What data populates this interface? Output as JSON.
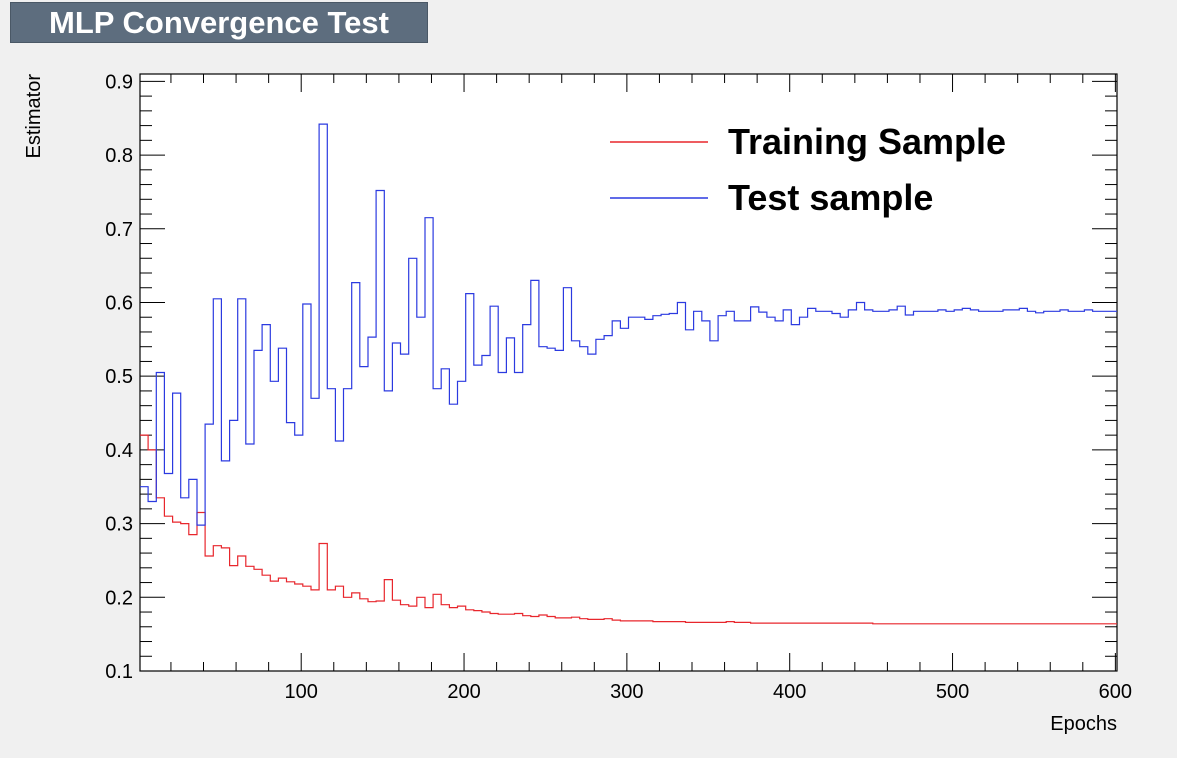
{
  "title": "MLP Convergence Test",
  "chart_data": {
    "type": "line",
    "xlabel": "Epochs",
    "ylabel": "Estimator",
    "xlim": [
      1,
      601
    ],
    "ylim": [
      0.1,
      0.91
    ],
    "x_ticks": [
      100,
      200,
      300,
      400,
      500,
      600
    ],
    "y_ticks": [
      0.1,
      0.2,
      0.3,
      0.4,
      0.5,
      0.6,
      0.7,
      0.8,
      0.9
    ],
    "y_tick_labels": [
      "0.1",
      "0.2",
      "0.3",
      "0.4",
      "0.5",
      "0.6",
      "0.7",
      "0.8",
      "0.9"
    ],
    "grid": false,
    "legend_position": "top-right",
    "series": [
      {
        "name": "Training Sample",
        "color": "#e8262c",
        "step": true,
        "x": [
          1,
          6,
          11,
          16,
          21,
          26,
          31,
          36,
          41,
          46,
          51,
          56,
          61,
          66,
          71,
          76,
          81,
          86,
          91,
          96,
          101,
          106,
          111,
          116,
          121,
          126,
          131,
          136,
          141,
          146,
          151,
          156,
          161,
          166,
          171,
          176,
          181,
          186,
          191,
          196,
          201,
          206,
          211,
          216,
          221,
          226,
          231,
          236,
          241,
          246,
          251,
          256,
          261,
          266,
          271,
          276,
          281,
          286,
          291,
          296,
          301,
          306,
          311,
          316,
          321,
          326,
          331,
          336,
          341,
          346,
          351,
          356,
          361,
          366,
          371,
          376,
          381,
          386,
          391,
          396,
          401,
          406,
          411,
          416,
          421,
          426,
          431,
          436,
          441,
          446,
          451,
          456,
          461,
          466,
          471,
          476,
          481,
          486,
          491,
          496,
          501,
          506,
          511,
          516,
          521,
          526,
          531,
          536,
          541,
          546,
          551,
          556,
          561,
          566,
          571,
          576,
          581,
          586,
          591,
          596
        ],
        "values": [
          0.42,
          0.4,
          0.335,
          0.31,
          0.302,
          0.3,
          0.285,
          0.315,
          0.256,
          0.27,
          0.267,
          0.243,
          0.256,
          0.242,
          0.238,
          0.23,
          0.222,
          0.226,
          0.221,
          0.218,
          0.215,
          0.21,
          0.273,
          0.21,
          0.215,
          0.2,
          0.206,
          0.198,
          0.194,
          0.195,
          0.224,
          0.196,
          0.19,
          0.188,
          0.2,
          0.186,
          0.204,
          0.19,
          0.186,
          0.188,
          0.183,
          0.182,
          0.18,
          0.178,
          0.177,
          0.177,
          0.178,
          0.175,
          0.174,
          0.176,
          0.174,
          0.172,
          0.172,
          0.173,
          0.171,
          0.17,
          0.17,
          0.171,
          0.169,
          0.168,
          0.168,
          0.168,
          0.168,
          0.167,
          0.167,
          0.167,
          0.167,
          0.166,
          0.166,
          0.166,
          0.166,
          0.166,
          0.167,
          0.166,
          0.166,
          0.165,
          0.165,
          0.165,
          0.165,
          0.165,
          0.165,
          0.165,
          0.165,
          0.165,
          0.165,
          0.165,
          0.165,
          0.165,
          0.165,
          0.165,
          0.164,
          0.164,
          0.164,
          0.164,
          0.164,
          0.164,
          0.164,
          0.164,
          0.164,
          0.164,
          0.164,
          0.164,
          0.164,
          0.164,
          0.164,
          0.164,
          0.164,
          0.164,
          0.164,
          0.164,
          0.164,
          0.164,
          0.164,
          0.164,
          0.164,
          0.164,
          0.164,
          0.164,
          0.164,
          0.164
        ]
      },
      {
        "name": "Test sample",
        "color": "#2b3ae0",
        "step": true,
        "x": [
          1,
          6,
          11,
          16,
          21,
          26,
          31,
          36,
          41,
          46,
          51,
          56,
          61,
          66,
          71,
          76,
          81,
          86,
          91,
          96,
          101,
          106,
          111,
          116,
          121,
          126,
          131,
          136,
          141,
          146,
          151,
          156,
          161,
          166,
          171,
          176,
          181,
          186,
          191,
          196,
          201,
          206,
          211,
          216,
          221,
          226,
          231,
          236,
          241,
          246,
          251,
          256,
          261,
          266,
          271,
          276,
          281,
          286,
          291,
          296,
          301,
          306,
          311,
          316,
          321,
          326,
          331,
          336,
          341,
          346,
          351,
          356,
          361,
          366,
          371,
          376,
          381,
          386,
          391,
          396,
          401,
          406,
          411,
          416,
          421,
          426,
          431,
          436,
          441,
          446,
          451,
          456,
          461,
          466,
          471,
          476,
          481,
          486,
          491,
          496,
          501,
          506,
          511,
          516,
          521,
          526,
          531,
          536,
          541,
          546,
          551,
          556,
          561,
          566,
          571,
          576,
          581,
          586,
          591,
          596
        ],
        "values": [
          0.35,
          0.33,
          0.505,
          0.368,
          0.477,
          0.335,
          0.36,
          0.298,
          0.435,
          0.605,
          0.385,
          0.44,
          0.605,
          0.408,
          0.535,
          0.57,
          0.493,
          0.538,
          0.437,
          0.42,
          0.598,
          0.47,
          0.842,
          0.483,
          0.412,
          0.483,
          0.627,
          0.513,
          0.553,
          0.752,
          0.48,
          0.545,
          0.53,
          0.66,
          0.58,
          0.715,
          0.483,
          0.51,
          0.462,
          0.493,
          0.612,
          0.515,
          0.528,
          0.595,
          0.505,
          0.552,
          0.505,
          0.57,
          0.63,
          0.54,
          0.538,
          0.535,
          0.62,
          0.548,
          0.54,
          0.53,
          0.55,
          0.555,
          0.575,
          0.565,
          0.58,
          0.58,
          0.577,
          0.582,
          0.584,
          0.585,
          0.6,
          0.563,
          0.588,
          0.575,
          0.548,
          0.582,
          0.588,
          0.575,
          0.575,
          0.594,
          0.587,
          0.58,
          0.575,
          0.59,
          0.57,
          0.58,
          0.592,
          0.588,
          0.588,
          0.585,
          0.58,
          0.59,
          0.6,
          0.59,
          0.588,
          0.588,
          0.59,
          0.595,
          0.583,
          0.588,
          0.588,
          0.588,
          0.59,
          0.588,
          0.59,
          0.592,
          0.59,
          0.588,
          0.588,
          0.588,
          0.59,
          0.59,
          0.592,
          0.588,
          0.586,
          0.588,
          0.588,
          0.59,
          0.588,
          0.588,
          0.59,
          0.588,
          0.588,
          0.588
        ]
      }
    ]
  }
}
